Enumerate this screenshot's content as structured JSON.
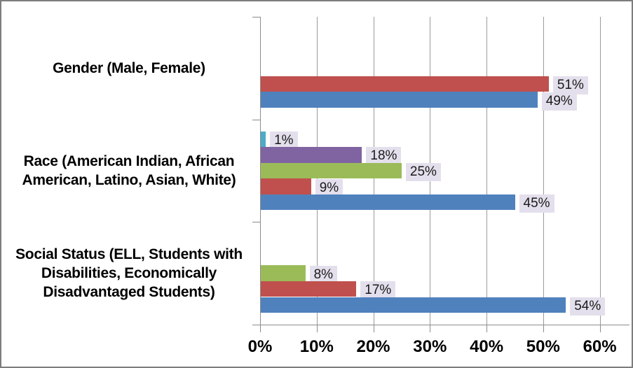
{
  "chart_data": {
    "type": "bar",
    "orientation": "horizontal",
    "title": "",
    "categories": [
      "Gender (Male, Female)",
      "Race (American Indian, African\nAmerican, Latino, Asian, White)",
      "Social Status (ELL, Students with\nDisabilities, Economically\nDisadvantaged Students)"
    ],
    "series": [
      {
        "name": "series-teal",
        "color": "#4BACC6",
        "values": [
          null,
          1,
          null
        ]
      },
      {
        "name": "series-purple",
        "color": "#8064A2",
        "values": [
          null,
          18,
          null
        ]
      },
      {
        "name": "series-green",
        "color": "#9BBB59",
        "values": [
          null,
          25,
          8
        ]
      },
      {
        "name": "series-red",
        "color": "#C0504D",
        "values": [
          51,
          9,
          17
        ]
      },
      {
        "name": "series-blue",
        "color": "#4F81BD",
        "values": [
          49,
          45,
          54
        ]
      }
    ],
    "data_labels": {
      "visible": true,
      "format": "{value}%",
      "shown_values": [
        "51%",
        "49%",
        "1%",
        "18%",
        "25%",
        "9%",
        "45%",
        "8%",
        "17%",
        "54%"
      ],
      "background": "#E4DFEC",
      "text_color": "#1A1A1A"
    },
    "x_axis": {
      "min": 0,
      "max": 65,
      "major_unit": 10,
      "tick_labels": [
        "0%",
        "10%",
        "20%",
        "30%",
        "40%",
        "50%",
        "60%"
      ]
    },
    "grid": true,
    "legend": false
  },
  "style": {
    "grid_color": "#9A9A9A",
    "axis_color": "#8C8C8C",
    "border_color": "#7D7D7D",
    "background": "#FFFFFF"
  }
}
